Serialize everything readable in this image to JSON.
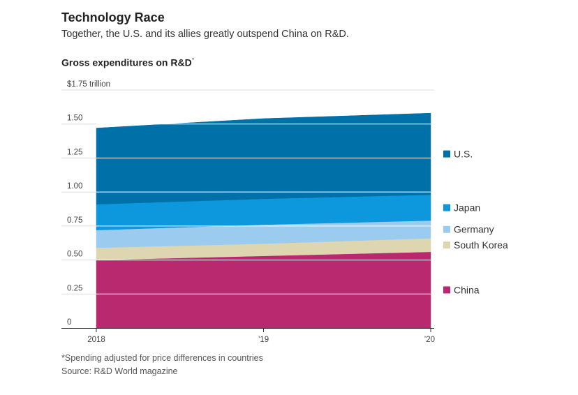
{
  "header": {
    "title": "Technology Race",
    "subtitle": "Together, the U.S. and its allies greatly outspend China on R&D."
  },
  "chart_title": "Gross expenditures on R&D",
  "chart_title_marker": "*",
  "footnote": "*Spending adjusted for price differences in countries",
  "source": "Source: R&D World magazine",
  "chart_data": {
    "type": "area",
    "stacked": true,
    "title": "Gross expenditures on R&D*",
    "ylabel": "",
    "xlabel": "",
    "x": [
      2018,
      2019,
      2020
    ],
    "x_tick_labels": [
      "2018",
      "’19",
      "’20"
    ],
    "y_tick_labels": [
      "0",
      "0.25",
      "0.50",
      "0.75",
      "1.00",
      "1.25",
      "1.50",
      "$1.75 trillion"
    ],
    "ylim": [
      0,
      1.75
    ],
    "grid": true,
    "legend_position": "right",
    "series": [
      {
        "name": "China",
        "values": [
          0.5,
          0.53,
          0.56
        ],
        "color": "#b8296f"
      },
      {
        "name": "South Korea",
        "values": [
          0.09,
          0.09,
          0.1
        ],
        "color": "#ded6b0"
      },
      {
        "name": "Germany",
        "values": [
          0.13,
          0.14,
          0.13
        ],
        "color": "#9bcbee"
      },
      {
        "name": "Japan",
        "values": [
          0.19,
          0.19,
          0.19
        ],
        "color": "#0d97dc"
      },
      {
        "name": "U.S.",
        "values": [
          0.56,
          0.59,
          0.6
        ],
        "color": "#0070a8"
      }
    ]
  }
}
